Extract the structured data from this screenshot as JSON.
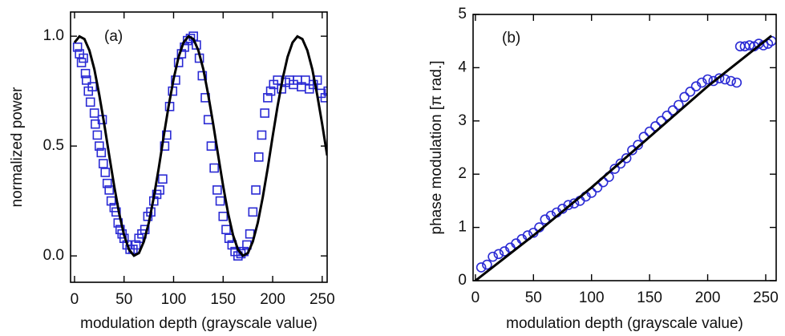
{
  "chart_data": [
    {
      "type": "scatter",
      "annotation": "(a)",
      "xlabel": "modulation depth (grayscale value)",
      "ylabel": "normalized power",
      "xlim": [
        -4,
        255
      ],
      "ylim": [
        -0.12,
        1.11
      ],
      "xticks": [
        0,
        50,
        100,
        150,
        200,
        250
      ],
      "yticks": [
        {
          "value": 0,
          "label": "0.0"
        },
        0.5,
        {
          "value": 1,
          "label": "1.0"
        }
      ],
      "series": [
        {
          "type": "scatter",
          "marker": "square",
          "color": "#2a2ad4",
          "x": [
            3,
            5,
            7,
            9,
            11,
            12,
            14,
            16,
            18,
            20,
            21,
            23,
            25,
            27,
            28,
            29,
            31,
            33,
            35,
            37,
            40,
            42,
            44,
            46,
            48,
            50,
            53,
            56,
            59,
            62,
            65,
            68,
            71,
            74,
            77,
            80,
            83,
            86,
            89,
            91,
            93,
            96,
            99,
            102,
            105,
            108,
            111,
            114,
            117,
            120,
            123,
            126,
            129,
            132,
            135,
            138,
            141,
            144,
            147,
            150,
            153,
            156,
            159,
            162,
            165,
            168,
            171,
            174,
            177,
            180,
            183,
            186,
            189,
            192,
            195,
            198,
            201,
            205,
            209,
            213,
            217,
            221,
            225,
            229,
            233,
            237,
            241,
            245,
            249,
            253,
            256
          ],
          "values": [
            0.95,
            0.92,
            0.88,
            0.9,
            0.83,
            0.8,
            0.75,
            0.7,
            0.77,
            0.65,
            0.6,
            0.55,
            0.5,
            0.47,
            0.62,
            0.42,
            0.38,
            0.33,
            0.3,
            0.25,
            0.22,
            0.2,
            0.15,
            0.12,
            0.1,
            0.08,
            0.05,
            0.03,
            0.03,
            0.05,
            0.08,
            0.1,
            0.12,
            0.18,
            0.2,
            0.25,
            0.28,
            0.3,
            0.35,
            0.5,
            0.55,
            0.68,
            0.75,
            0.8,
            0.88,
            0.92,
            0.95,
            0.98,
            0.99,
            1.0,
            0.96,
            0.9,
            0.82,
            0.72,
            0.62,
            0.5,
            0.4,
            0.3,
            0.25,
            0.18,
            0.12,
            0.08,
            0.05,
            0.02,
            0.0,
            0.01,
            0.02,
            0.05,
            0.1,
            0.2,
            0.3,
            0.45,
            0.55,
            0.65,
            0.72,
            0.75,
            0.78,
            0.8,
            0.76,
            0.79,
            0.8,
            0.78,
            0.8,
            0.77,
            0.8,
            0.76,
            0.78,
            0.8,
            0.74,
            0.72,
            0.75
          ]
        },
        {
          "type": "line",
          "color": "#000000",
          "x": [
            0,
            5,
            10,
            15,
            20,
            25,
            30,
            35,
            40,
            45,
            50,
            55,
            60,
            65,
            70,
            75,
            80,
            85,
            90,
            95,
            100,
            105,
            110,
            115,
            120,
            125,
            130,
            135,
            140,
            145,
            150,
            155,
            160,
            165,
            170,
            175,
            180,
            185,
            190,
            195,
            200,
            205,
            210,
            215,
            220,
            225,
            230,
            235,
            240,
            245,
            250,
            255
          ],
          "values": [
            0.971,
            0.999,
            0.987,
            0.935,
            0.849,
            0.733,
            0.6,
            0.457,
            0.318,
            0.195,
            0.095,
            0.029,
            0.001,
            0.013,
            0.065,
            0.151,
            0.267,
            0.4,
            0.543,
            0.682,
            0.805,
            0.905,
            0.971,
            0.999,
            0.987,
            0.935,
            0.849,
            0.733,
            0.6,
            0.457,
            0.318,
            0.195,
            0.095,
            0.029,
            0.001,
            0.013,
            0.065,
            0.151,
            0.267,
            0.4,
            0.543,
            0.682,
            0.805,
            0.905,
            0.971,
            0.999,
            0.987,
            0.935,
            0.849,
            0.733,
            0.6,
            0.457
          ]
        }
      ]
    },
    {
      "type": "scatter",
      "annotation": "(b)",
      "xlabel": "modulation depth (grayscale value)",
      "ylabel": "phase modulation [π rad.]",
      "xlim": [
        -2,
        259
      ],
      "ylim": [
        0,
        5
      ],
      "xticks": [
        0,
        50,
        100,
        150,
        200,
        250
      ],
      "yticks": [
        0,
        1,
        2,
        3,
        4,
        5
      ],
      "series": [
        {
          "type": "scatter",
          "marker": "circle",
          "color": "#2a2ad4",
          "x": [
            5,
            10,
            15,
            20,
            25,
            30,
            35,
            40,
            45,
            50,
            55,
            60,
            65,
            70,
            75,
            80,
            85,
            90,
            95,
            100,
            105,
            110,
            115,
            120,
            125,
            130,
            135,
            140,
            145,
            150,
            155,
            160,
            165,
            170,
            175,
            180,
            185,
            190,
            195,
            200,
            205,
            210,
            215,
            220,
            225,
            228,
            232,
            236,
            240,
            244,
            248,
            252,
            255
          ],
          "values": [
            0.25,
            0.3,
            0.45,
            0.5,
            0.55,
            0.62,
            0.7,
            0.78,
            0.85,
            0.9,
            1.0,
            1.15,
            1.22,
            1.28,
            1.35,
            1.42,
            1.45,
            1.5,
            1.58,
            1.65,
            1.75,
            1.85,
            1.95,
            2.1,
            2.2,
            2.3,
            2.45,
            2.55,
            2.7,
            2.8,
            2.9,
            3.0,
            3.1,
            3.2,
            3.3,
            3.45,
            3.55,
            3.65,
            3.72,
            3.78,
            3.75,
            3.8,
            3.78,
            3.75,
            3.72,
            4.4,
            4.4,
            4.42,
            4.4,
            4.45,
            4.42,
            4.45,
            4.5
          ]
        },
        {
          "type": "line",
          "color": "#000000",
          "x": [
            0,
            50,
            100,
            150,
            200,
            255
          ],
          "values": [
            0,
            0.85,
            1.75,
            2.7,
            3.65,
            4.6
          ]
        }
      ]
    }
  ]
}
